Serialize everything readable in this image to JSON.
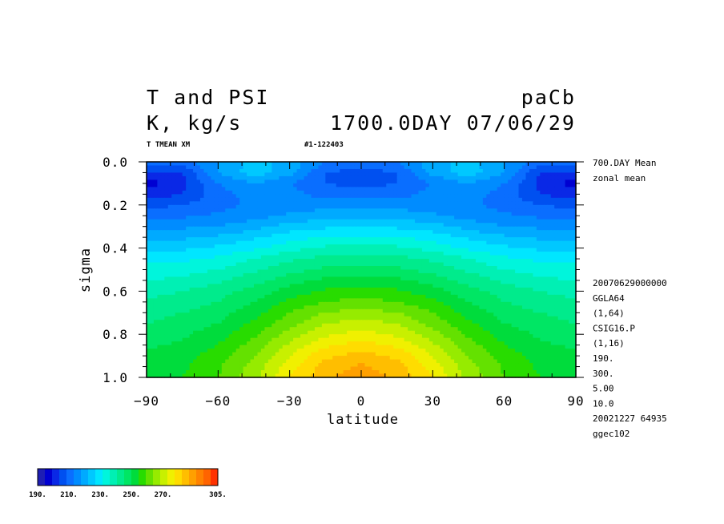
{
  "header": {
    "title_left_1": "T and PSI",
    "title_left_2": "K, kg/s",
    "title_right_1": "paCb",
    "title_right_2": "1700.0DAY 07/06/29",
    "sub_left": "T TMEAN XM",
    "sub_mid": "#1-122403"
  },
  "side_info": {
    "top": [
      "700.DAY Mean",
      "zonal mean"
    ],
    "lower": [
      "20070629000000",
      "GGLA64",
      "(1,64)",
      "CSIG16.P",
      "(1,16)",
      "190.",
      "300.",
      "5.00",
      "10.0",
      "20021227  64935",
      "ggec102"
    ]
  },
  "chart_data": {
    "type": "heatmap",
    "title": "T and PSI",
    "units": "K, kg/s",
    "xlabel": "latitude",
    "ylabel": "sigma",
    "xlim": [
      -90,
      90
    ],
    "ylim": [
      1.0,
      0.0
    ],
    "x_ticks": [
      "−90",
      "−60",
      "−30",
      "0",
      "30",
      "60",
      "90"
    ],
    "y_ticks": [
      "0.0",
      "0.2",
      "0.4",
      "0.6",
      "0.8",
      "1.0"
    ],
    "x": [
      -90,
      -75,
      -60,
      -45,
      -30,
      -15,
      0,
      15,
      30,
      45,
      60,
      75,
      90
    ],
    "y": [
      0.0,
      0.05,
      0.1,
      0.15,
      0.2,
      0.25,
      0.3,
      0.35,
      0.4,
      0.45,
      0.5,
      0.55,
      0.6,
      0.65,
      0.7,
      0.75,
      0.8,
      0.85,
      0.9,
      0.95,
      1.0
    ],
    "z": [
      [
        215,
        213,
        220,
        227,
        223,
        215,
        213,
        215,
        223,
        227,
        220,
        213,
        215
      ],
      [
        203,
        205,
        220,
        228,
        222,
        210,
        208,
        210,
        222,
        228,
        220,
        205,
        203
      ],
      [
        198,
        203,
        215,
        220,
        215,
        210,
        208,
        210,
        215,
        220,
        215,
        203,
        198
      ],
      [
        202,
        205,
        213,
        217,
        217,
        213,
        213,
        213,
        217,
        217,
        213,
        205,
        202
      ],
      [
        208,
        210,
        213,
        216,
        217,
        218,
        218,
        218,
        217,
        216,
        213,
        210,
        208
      ],
      [
        213,
        214,
        216,
        218,
        221,
        223,
        224,
        223,
        221,
        218,
        216,
        214,
        213
      ],
      [
        218,
        219,
        220,
        223,
        227,
        229,
        230,
        229,
        227,
        223,
        220,
        219,
        218
      ],
      [
        223,
        224,
        226,
        229,
        233,
        235,
        236,
        235,
        233,
        229,
        226,
        224,
        223
      ],
      [
        228,
        229,
        231,
        234,
        238,
        241,
        242,
        241,
        238,
        234,
        231,
        229,
        228
      ],
      [
        233,
        234,
        236,
        240,
        244,
        247,
        248,
        247,
        244,
        240,
        236,
        234,
        233
      ],
      [
        237,
        238,
        240,
        244,
        248,
        251,
        252,
        251,
        248,
        244,
        240,
        238,
        237
      ],
      [
        240,
        241,
        244,
        248,
        253,
        256,
        257,
        256,
        253,
        248,
        244,
        241,
        240
      ],
      [
        243,
        245,
        248,
        252,
        257,
        261,
        262,
        261,
        257,
        252,
        248,
        245,
        243
      ],
      [
        246,
        247,
        250,
        255,
        261,
        265,
        267,
        265,
        261,
        255,
        250,
        247,
        246
      ],
      [
        248,
        250,
        253,
        258,
        265,
        270,
        272,
        270,
        265,
        258,
        253,
        250,
        248
      ],
      [
        250,
        252,
        255,
        261,
        268,
        275,
        277,
        275,
        268,
        261,
        255,
        252,
        250
      ],
      [
        252,
        254,
        258,
        264,
        272,
        279,
        282,
        279,
        272,
        264,
        258,
        254,
        252
      ],
      [
        254,
        256,
        260,
        267,
        276,
        284,
        287,
        284,
        276,
        267,
        260,
        256,
        254
      ],
      [
        256,
        258,
        263,
        270,
        280,
        289,
        292,
        289,
        280,
        270,
        263,
        258,
        256
      ],
      [
        257,
        259,
        264,
        272,
        283,
        292,
        296,
        292,
        283,
        272,
        264,
        259,
        257
      ],
      [
        258,
        260,
        265,
        273,
        285,
        294,
        298,
        294,
        285,
        273,
        265,
        260,
        258
      ]
    ],
    "color_scale": {
      "min": 190,
      "max": 305,
      "step": 5,
      "tick_labels": [
        "190.",
        "210.",
        "230.",
        "250.",
        "270.",
        "305."
      ],
      "colors": [
        "#1e1eb4",
        "#0000d2",
        "#0a28e6",
        "#0050f0",
        "#0a6eff",
        "#008cff",
        "#00aaff",
        "#00c8ff",
        "#00e6ff",
        "#00f5dc",
        "#00f0b4",
        "#00eb8c",
        "#00e664",
        "#00dc3c",
        "#28dc00",
        "#64e100",
        "#96eb00",
        "#c8f000",
        "#f0f000",
        "#ffdc00",
        "#ffbe00",
        "#ffa000",
        "#ff8200",
        "#ff6400",
        "#ff3200"
      ]
    }
  }
}
